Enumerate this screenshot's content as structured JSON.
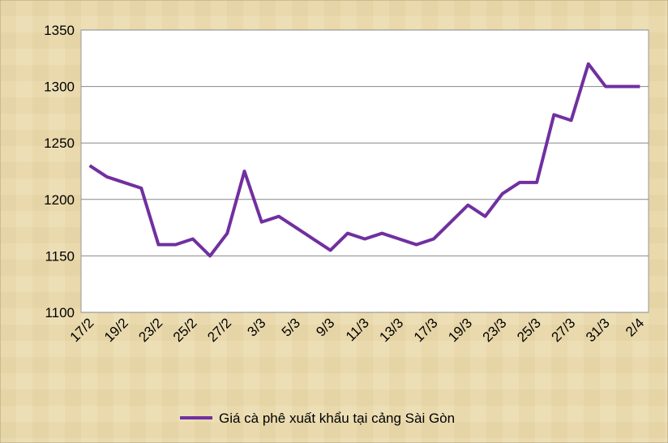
{
  "chart_data": {
    "type": "line",
    "categories": [
      "17/2",
      null,
      "19/2",
      null,
      "23/2",
      null,
      "25/2",
      null,
      "27/2",
      null,
      "3/3",
      null,
      "5/3",
      null,
      "9/3",
      null,
      "11/3",
      null,
      "13/3",
      null,
      "17/3",
      null,
      "19/3",
      null,
      "23/3",
      null,
      "25/3",
      null,
      "27/3",
      null,
      "31/3",
      null,
      "2/4"
    ],
    "series": [
      {
        "name": "Giá cà phê xuất khẩu tại cảng Sài Gòn",
        "color": "#7030a0",
        "values": [
          1230,
          1220,
          1215,
          1210,
          1160,
          1160,
          1165,
          1150,
          1170,
          1225,
          1180,
          1185,
          1175,
          1165,
          1155,
          1170,
          1165,
          1170,
          1165,
          1160,
          1165,
          1180,
          1195,
          1185,
          1205,
          1215,
          1215,
          1275,
          1270,
          1320,
          1300,
          1300,
          1300
        ]
      }
    ],
    "ylim": [
      1100,
      1350
    ],
    "yticks": [
      1100,
      1150,
      1200,
      1250,
      1300,
      1350
    ],
    "grid": true,
    "legend": "bottom"
  }
}
